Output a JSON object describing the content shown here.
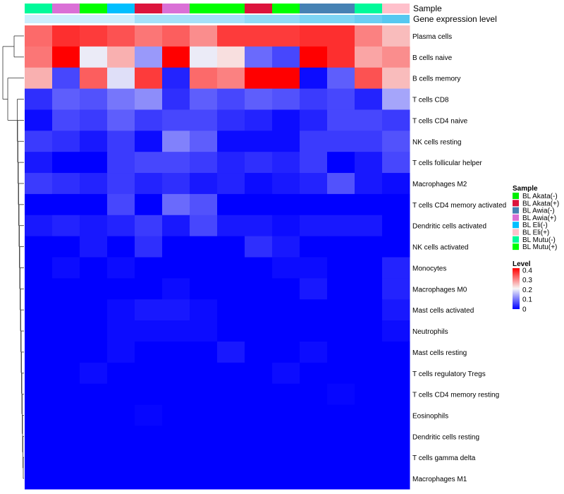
{
  "chart_data": {
    "type": "heatmap",
    "annotations": [
      {
        "name": "Sample",
        "values": [
          "BL Mutu(-)",
          "BL Awia(+)",
          "BL Mutu(+)",
          "BL Eli(-)",
          "BL Akata(+)",
          "BL Awia(+)",
          "BL Mutu(+)",
          "BL Mutu(+)",
          "BL Akata(+)",
          "BL Mutu(+)",
          "BL Awia(-)",
          "BL Awia(-)",
          "BL Mutu(-)",
          "BL Eli(+)"
        ]
      },
      {
        "name": "Gene expression level",
        "values": [
          0.05,
          0.05,
          0.05,
          0.05,
          0.15,
          0.15,
          0.15,
          0.15,
          0.2,
          0.2,
          0.25,
          0.25,
          0.3,
          0.35
        ]
      }
    ],
    "rows": [
      "Plasma cells",
      "B cells naive",
      "B cells memory",
      "T cells CD8",
      "T cells CD4 naive",
      "NK cells resting",
      "T cells follicular helper",
      "Macrophages M2",
      "T cells CD4 memory activated",
      "Dendritic cells activated",
      "NK cells activated",
      "Monocytes",
      "Macrophages M0",
      "Mast cells activated",
      "Neutrophils",
      "Mast cells resting",
      "T cells regulatory  Tregs",
      "T cells CD4 memory resting",
      "Eosinophils",
      "Dendritic cells resting",
      "T cells gamma delta",
      "Macrophages M1"
    ],
    "values": [
      [
        0.33,
        0.38,
        0.37,
        0.35,
        0.32,
        0.34,
        0.3,
        0.37,
        0.37,
        0.37,
        0.38,
        0.38,
        0.31,
        0.26
      ],
      [
        0.32,
        0.42,
        0.2,
        0.27,
        0.13,
        0.42,
        0.2,
        0.23,
        0.09,
        0.06,
        0.42,
        0.38,
        0.28,
        0.3
      ],
      [
        0.27,
        0.06,
        0.34,
        0.19,
        0.37,
        0.03,
        0.33,
        0.31,
        0.42,
        0.42,
        0.01,
        0.08,
        0.35,
        0.26
      ],
      [
        0.04,
        0.08,
        0.07,
        0.1,
        0.12,
        0.04,
        0.08,
        0.06,
        0.08,
        0.07,
        0.05,
        0.06,
        0.03,
        0.14
      ],
      [
        0.01,
        0.06,
        0.05,
        0.08,
        0.05,
        0.06,
        0.06,
        0.04,
        0.03,
        0.01,
        0.03,
        0.06,
        0.06,
        0.05
      ],
      [
        0.05,
        0.04,
        0.02,
        0.05,
        0.01,
        0.11,
        0.08,
        0.01,
        0.01,
        0.01,
        0.05,
        0.05,
        0.05,
        0.07
      ],
      [
        0.02,
        0.0,
        0.0,
        0.05,
        0.06,
        0.06,
        0.05,
        0.03,
        0.04,
        0.03,
        0.05,
        0.0,
        0.02,
        0.06
      ],
      [
        0.05,
        0.04,
        0.03,
        0.05,
        0.03,
        0.04,
        0.02,
        0.03,
        0.01,
        0.02,
        0.03,
        0.07,
        0.02,
        0.01
      ],
      [
        0.0,
        0.0,
        0.0,
        0.06,
        0.0,
        0.09,
        0.07,
        0.0,
        0.0,
        0.0,
        0.0,
        0.0,
        0.0,
        0.0
      ],
      [
        0.02,
        0.03,
        0.02,
        0.03,
        0.05,
        0.02,
        0.06,
        0.02,
        0.02,
        0.01,
        0.02,
        0.02,
        0.02,
        0.0
      ],
      [
        0.0,
        0.0,
        0.02,
        0.0,
        0.04,
        0.0,
        0.0,
        0.0,
        0.04,
        0.02,
        0.0,
        0.0,
        0.0,
        0.0
      ],
      [
        0.0,
        0.01,
        0.0,
        0.01,
        0.0,
        0.0,
        0.0,
        0.0,
        0.0,
        0.01,
        0.01,
        0.0,
        0.0,
        0.03
      ],
      [
        0.0,
        0.0,
        0.0,
        0.0,
        0.0,
        0.01,
        0.0,
        0.0,
        0.0,
        0.0,
        0.02,
        0.0,
        0.0,
        0.03
      ],
      [
        0.0,
        0.0,
        0.0,
        0.01,
        0.02,
        0.02,
        0.01,
        0.0,
        0.0,
        0.0,
        0.0,
        0.0,
        0.0,
        0.02
      ],
      [
        0.0,
        0.0,
        0.0,
        0.01,
        0.01,
        0.01,
        0.01,
        0.0,
        0.0,
        0.0,
        0.0,
        0.0,
        0.0,
        0.01
      ],
      [
        0.0,
        0.0,
        0.0,
        0.01,
        0.0,
        0.0,
        0.0,
        0.02,
        0.0,
        0.0,
        0.01,
        0.0,
        0.0,
        0.0
      ],
      [
        0.0,
        0.0,
        0.01,
        0.0,
        0.0,
        0.0,
        0.0,
        0.0,
        0.0,
        0.01,
        0.0,
        0.0,
        0.0,
        0.0
      ],
      [
        0.0,
        0.0,
        0.0,
        0.0,
        0.0,
        0.0,
        0.0,
        0.0,
        0.0,
        0.0,
        0.0,
        0.005,
        0.0,
        0.0
      ],
      [
        0.0,
        0.0,
        0.0,
        0.0,
        0.005,
        0.0,
        0.0,
        0.0,
        0.0,
        0.0,
        0.0,
        0.0,
        0.0,
        0.0
      ],
      [
        0.0,
        0.0,
        0.0,
        0.0,
        0.0,
        0.0,
        0.0,
        0.0,
        0.0,
        0.0,
        0.0,
        0.0,
        0.0,
        0.0
      ],
      [
        0.0,
        0.0,
        0.0,
        0.0,
        0.0,
        0.0,
        0.0,
        0.0,
        0.0,
        0.0,
        0.0,
        0.0,
        0.0,
        0.0
      ],
      [
        0.0,
        0.0,
        0.0,
        0.0,
        0.0,
        0.0,
        0.0,
        0.0,
        0.0,
        0.0,
        0.0,
        0.0,
        0.0,
        0.0
      ]
    ],
    "color_scale": {
      "low": "#0000ff",
      "mid": "#f7f7f7",
      "high": "#ff0000",
      "range": [
        0,
        0.42
      ]
    },
    "legend": {
      "sample_title": "Sample",
      "samples": [
        {
          "label": "BL Akata(-)",
          "color": "#00ee00"
        },
        {
          "label": "BL Akata(+)",
          "color": "#dc143c"
        },
        {
          "label": "BL Awia(-)",
          "color": "#4682b4"
        },
        {
          "label": "BL Awia(+)",
          "color": "#da70d6"
        },
        {
          "label": "BL Eli(-)",
          "color": "#00bfff"
        },
        {
          "label": "BL Eli(+)",
          "color": "#ffc0cb"
        },
        {
          "label": "BL Mutu(-)",
          "color": "#00fa9a"
        },
        {
          "label": "BL Mutu(+)",
          "color": "#00ff00"
        }
      ],
      "level_title": "Level",
      "level_ticks": [
        "0.4",
        "0.3",
        "0.2",
        "0.1",
        "0"
      ]
    },
    "row_dendrogram": true
  }
}
